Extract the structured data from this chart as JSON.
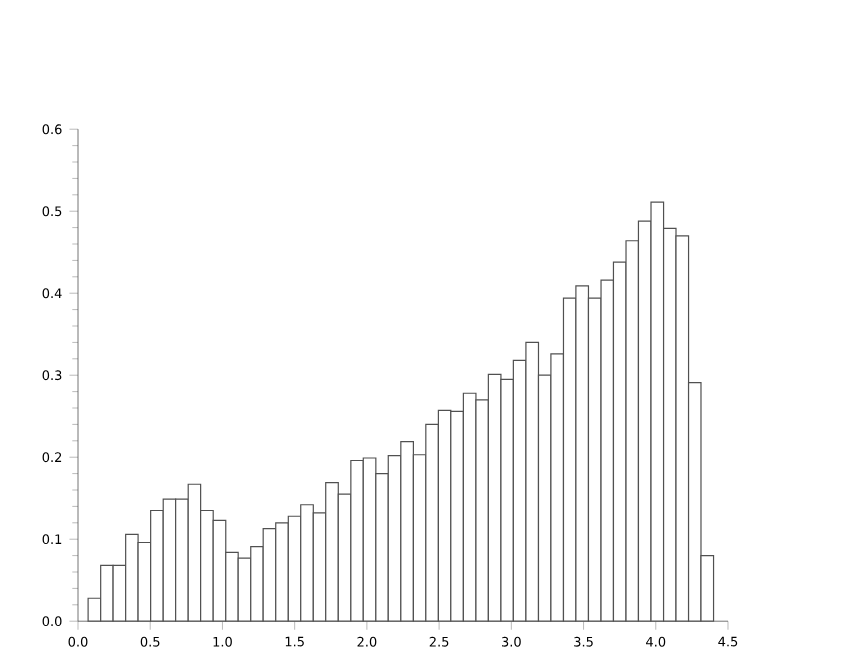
{
  "chart_data": {
    "type": "histogram",
    "bins": [
      0.07,
      0.157,
      0.243,
      0.33,
      0.416,
      0.503,
      0.59,
      0.676,
      0.763,
      0.849,
      0.936,
      1.023,
      1.109,
      1.196,
      1.282,
      1.369,
      1.456,
      1.542,
      1.629,
      1.715,
      1.802,
      1.889,
      1.975,
      2.062,
      2.148,
      2.235,
      2.322,
      2.408,
      2.495,
      2.581,
      2.668,
      2.755,
      2.841,
      2.928,
      3.014,
      3.101,
      3.188,
      3.274,
      3.361,
      3.447,
      3.534,
      3.621,
      3.707,
      3.794,
      3.88,
      3.967,
      4.054,
      4.14,
      4.227,
      4.313,
      4.4
    ],
    "values": [
      0.028,
      0.068,
      0.068,
      0.106,
      0.096,
      0.135,
      0.149,
      0.149,
      0.167,
      0.135,
      0.123,
      0.084,
      0.077,
      0.091,
      0.113,
      0.12,
      0.128,
      0.142,
      0.132,
      0.169,
      0.155,
      0.196,
      0.199,
      0.18,
      0.202,
      0.219,
      0.203,
      0.24,
      0.257,
      0.256,
      0.278,
      0.27,
      0.301,
      0.295,
      0.318,
      0.34,
      0.3,
      0.326,
      0.394,
      0.409,
      0.394,
      0.416,
      0.438,
      0.464,
      0.488,
      0.511,
      0.479,
      0.47,
      0.291,
      0.08
    ],
    "color": "#ffffff",
    "xlim": [
      0,
      4.5
    ],
    "ylim": [
      0,
      0.6
    ],
    "xticks": [
      {
        "value": 0,
        "label": "0.0"
      },
      0.5,
      {
        "value": 1,
        "label": "1.0"
      },
      1.5,
      {
        "value": 2,
        "label": "2.0"
      },
      2.5,
      {
        "value": 3,
        "label": "3.0"
      },
      3.5,
      {
        "value": 4,
        "label": "4.0"
      },
      4.5
    ],
    "yticks": [
      {
        "value": 0,
        "label": "0.0"
      },
      0.1,
      0.2,
      0.3,
      0.4,
      0.5,
      0.6
    ],
    "grid": false
  }
}
